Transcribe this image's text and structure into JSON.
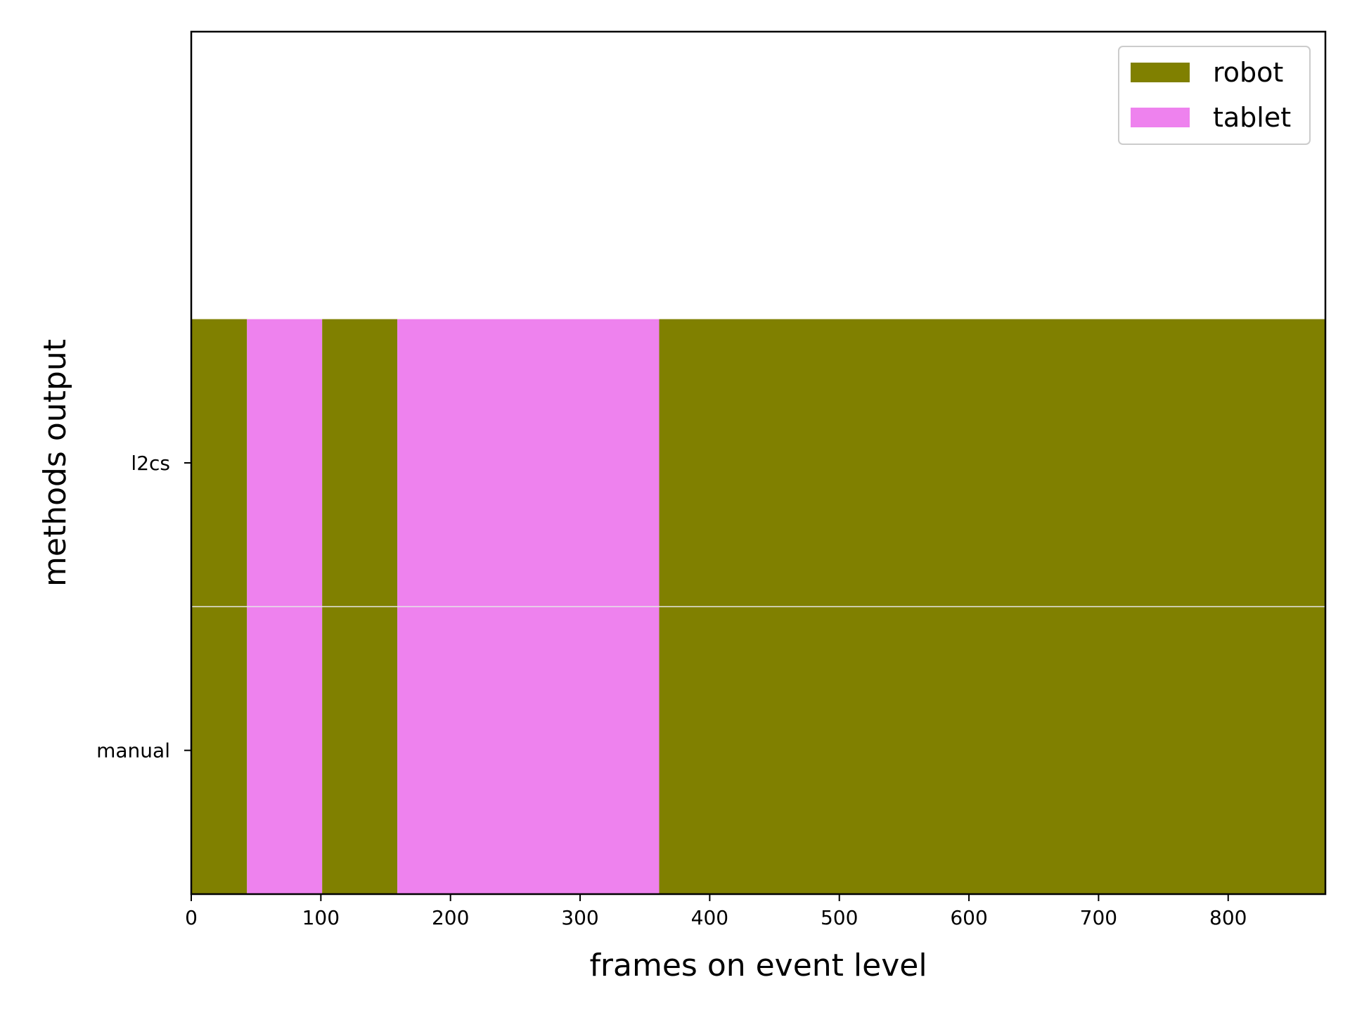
{
  "chart_data": {
    "type": "bar",
    "orientation": "horizontal-timeline",
    "xlabel": "frames on event level",
    "ylabel": "methods output",
    "xlim": [
      0,
      875
    ],
    "xticks": [
      0,
      100,
      200,
      300,
      400,
      500,
      600,
      700,
      800
    ],
    "categories": [
      "manual",
      "l2cs"
    ],
    "ylim": [
      -0.5,
      2.5
    ],
    "grid": false,
    "legend_placement": "top-right",
    "legend": [
      {
        "label": "robot",
        "color": "#808000"
      },
      {
        "label": "tablet",
        "color": "#ee82ee"
      }
    ],
    "rows": [
      {
        "category": "manual",
        "segments": [
          {
            "label": "robot",
            "start": 0,
            "end": 43
          },
          {
            "label": "tablet",
            "start": 43,
            "end": 101
          },
          {
            "label": "robot",
            "start": 101,
            "end": 159
          },
          {
            "label": "tablet",
            "start": 159,
            "end": 361
          },
          {
            "label": "robot",
            "start": 361,
            "end": 875
          }
        ]
      },
      {
        "category": "l2cs",
        "segments": [
          {
            "label": "robot",
            "start": 0,
            "end": 43
          },
          {
            "label": "tablet",
            "start": 43,
            "end": 101
          },
          {
            "label": "robot",
            "start": 101,
            "end": 159
          },
          {
            "label": "tablet",
            "start": 159,
            "end": 361
          },
          {
            "label": "robot",
            "start": 361,
            "end": 875
          }
        ]
      }
    ]
  }
}
